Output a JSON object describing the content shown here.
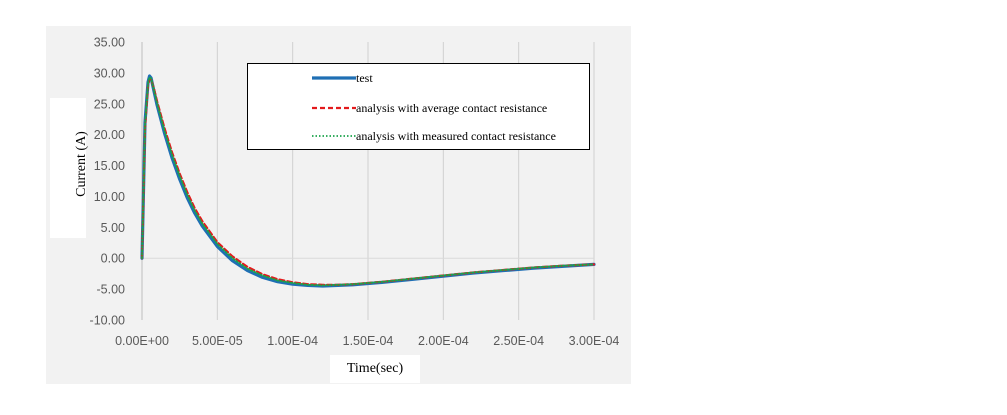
{
  "chart_data": {
    "type": "line",
    "xlabel": "Time(sec)",
    "ylabel": "Current (A)",
    "xlim": [
      0,
      0.0003
    ],
    "ylim": [
      -10,
      35
    ],
    "x_ticks": [
      "0.00E+00",
      "5.00E-05",
      "1.00E-04",
      "1.50E-04",
      "2.00E-04",
      "2.50E-04",
      "3.00E-04"
    ],
    "y_ticks": [
      "35.00",
      "30.00",
      "25.00",
      "20.00",
      "15.00",
      "10.00",
      "5.00",
      "0.00",
      "-5.00",
      "-10.00"
    ],
    "grid": "vertical",
    "legend_position": "top-right",
    "series": [
      {
        "name": "test",
        "color": "#1f6fb4",
        "style": "solid",
        "x": [
          0,
          2e-06,
          4e-06,
          5e-06,
          6e-06,
          8e-06,
          1e-05,
          1.5e-05,
          2e-05,
          2.5e-05,
          3e-05,
          3.5e-05,
          4e-05,
          5e-05,
          6e-05,
          7e-05,
          8e-05,
          9e-05,
          0.0001,
          0.00011,
          0.00012,
          0.00013,
          0.00014,
          0.00015,
          0.00016,
          0.00018,
          0.0002,
          0.00022,
          0.00024,
          0.00026,
          0.00028,
          0.0003
        ],
        "y": [
          0,
          22,
          28.5,
          29.5,
          29.2,
          27.0,
          24.8,
          20.2,
          16.2,
          12.8,
          9.8,
          7.3,
          5.2,
          1.9,
          -0.4,
          -2.0,
          -3.1,
          -3.8,
          -4.2,
          -4.4,
          -4.5,
          -4.4,
          -4.3,
          -4.1,
          -3.9,
          -3.4,
          -2.9,
          -2.4,
          -2.0,
          -1.6,
          -1.3,
          -1.0
        ]
      },
      {
        "name": "analysis with average contact resistance",
        "color": "#e31a1c",
        "style": "dashed",
        "x": [
          0,
          2e-06,
          4e-06,
          5e-06,
          6e-06,
          8e-06,
          1e-05,
          1.5e-05,
          2e-05,
          2.5e-05,
          3e-05,
          3.5e-05,
          4e-05,
          5e-05,
          6e-05,
          7e-05,
          8e-05,
          9e-05,
          0.0001,
          0.00011,
          0.00012,
          0.00013,
          0.00014,
          0.00015,
          0.00016,
          0.00018,
          0.0002,
          0.00022,
          0.00024,
          0.00026,
          0.00028,
          0.0003
        ],
        "y": [
          0,
          21,
          28.0,
          29.0,
          29.0,
          27.4,
          25.4,
          21.0,
          17.1,
          13.7,
          10.7,
          8.1,
          6.0,
          2.6,
          0.3,
          -1.4,
          -2.6,
          -3.4,
          -3.9,
          -4.2,
          -4.3,
          -4.3,
          -4.2,
          -4.0,
          -3.8,
          -3.3,
          -2.8,
          -2.3,
          -1.9,
          -1.5,
          -1.2,
          -1.0
        ]
      },
      {
        "name": "analysis with measured contact resistance",
        "color": "#1aa34a",
        "style": "dotted",
        "x": [
          0,
          2e-06,
          4e-06,
          5e-06,
          6e-06,
          8e-06,
          1e-05,
          1.5e-05,
          2e-05,
          2.5e-05,
          3e-05,
          3.5e-05,
          4e-05,
          5e-05,
          6e-05,
          7e-05,
          8e-05,
          9e-05,
          0.0001,
          0.00011,
          0.00012,
          0.00013,
          0.00014,
          0.00015,
          0.00016,
          0.00018,
          0.0002,
          0.00022,
          0.00024,
          0.00026,
          0.00028,
          0.0003
        ],
        "y": [
          0,
          21.5,
          28.3,
          29.3,
          29.1,
          27.2,
          25.1,
          20.6,
          16.7,
          13.3,
          10.3,
          7.7,
          5.6,
          2.3,
          0.0,
          -1.7,
          -2.8,
          -3.6,
          -4.0,
          -4.3,
          -4.4,
          -4.3,
          -4.2,
          -4.0,
          -3.8,
          -3.3,
          -2.8,
          -2.3,
          -1.9,
          -1.5,
          -1.2,
          -1.0
        ]
      }
    ]
  }
}
